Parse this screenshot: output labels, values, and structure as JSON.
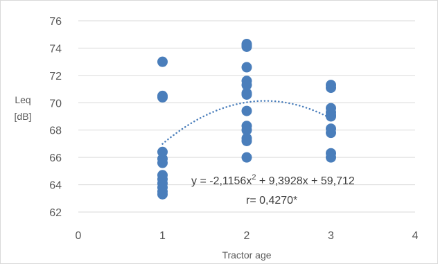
{
  "chart_data": {
    "type": "scatter",
    "title": "",
    "xlabel": "Tractor age",
    "ylabel_line1": "Leq",
    "ylabel_line2": "[dB]",
    "xlim": [
      0,
      4
    ],
    "ylim": [
      62,
      76
    ],
    "x_ticks": [
      0,
      1,
      2,
      3,
      4
    ],
    "y_ticks": [
      62,
      64,
      66,
      68,
      70,
      72,
      74,
      76
    ],
    "grid": "horizontal",
    "legend": "none",
    "colors": {
      "points": "#4a7ebb",
      "trendline": "#4a7ebb",
      "grid": "#d9d9d9",
      "text": "#595959"
    },
    "series": [
      {
        "x": [
          1,
          1,
          1,
          1,
          1,
          1,
          1,
          1,
          1,
          1,
          1,
          1,
          2,
          2,
          2,
          2,
          2,
          2,
          2,
          2,
          2,
          2,
          2,
          2,
          2,
          2,
          3,
          3,
          3,
          3,
          3,
          3,
          3,
          3,
          3,
          3
        ],
        "y": [
          73.0,
          70.5,
          70.4,
          66.4,
          65.9,
          65.6,
          64.7,
          64.4,
          64.1,
          63.8,
          63.5,
          63.3,
          74.3,
          74.1,
          72.6,
          71.6,
          71.3,
          70.7,
          69.4,
          68.3,
          68.0,
          67.4,
          67.2,
          66.0,
          70.6,
          74.2,
          71.3,
          71.1,
          69.6,
          69.3,
          69.0,
          68.1,
          67.8,
          66.3,
          66.0,
          69.1
        ]
      }
    ],
    "trendline": {
      "type": "polynomial",
      "order": 2,
      "coefficients": [
        -2.1156,
        9.3928,
        59.712
      ],
      "x_range": [
        1,
        3
      ]
    },
    "annotation": {
      "equation_prefix": "y = -2,1156x",
      "equation_exp": "2",
      "equation_suffix": " + 9,3928x + 59,712",
      "r_text": "r= 0,4270*"
    }
  }
}
